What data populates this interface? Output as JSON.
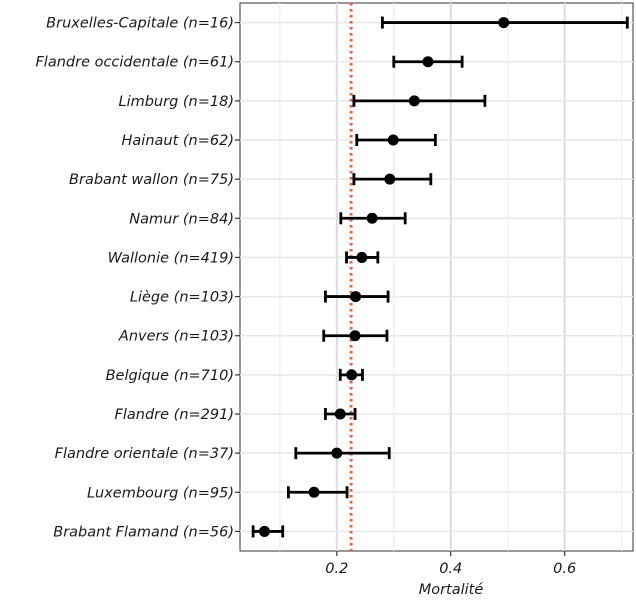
{
  "chart_data": {
    "type": "scatter",
    "subtype": "point-range",
    "title": "",
    "xlabel": "Mortalité",
    "ylabel": "",
    "xlim": [
      0.03,
      0.72
    ],
    "xticks": [
      0.2,
      0.4,
      0.6
    ],
    "xtick_labels": [
      "0.2",
      "0.4",
      "0.6"
    ],
    "grid": true,
    "reference_line": {
      "x": 0.225,
      "style": "dotted",
      "color": "#e8603c"
    },
    "point_color": "#000000",
    "categories": [
      "Bruxelles-Capitale (n=16)",
      "Flandre occidentale (n=61)",
      "Limburg (n=18)",
      "Hainaut (n=62)",
      "Brabant wallon (n=75)",
      "Namur (n=84)",
      "Wallonie (n=419)",
      "Liège (n=103)",
      "Anvers (n=103)",
      "Belgique (n=710)",
      "Flandre (n=291)",
      "Flandre orientale (n=37)",
      "Luxembourg (n=95)",
      "Brabant Flamand (n=56)"
    ],
    "values": [
      0.493,
      0.36,
      0.336,
      0.299,
      0.293,
      0.262,
      0.244,
      0.233,
      0.232,
      0.226,
      0.206,
      0.2,
      0.16,
      0.073
    ],
    "lower": [
      0.28,
      0.3,
      0.23,
      0.235,
      0.23,
      0.207,
      0.217,
      0.18,
      0.177,
      0.206,
      0.18,
      0.128,
      0.115,
      0.053
    ],
    "upper": [
      0.71,
      0.42,
      0.46,
      0.373,
      0.365,
      0.32,
      0.272,
      0.29,
      0.288,
      0.245,
      0.232,
      0.292,
      0.218,
      0.105
    ]
  }
}
